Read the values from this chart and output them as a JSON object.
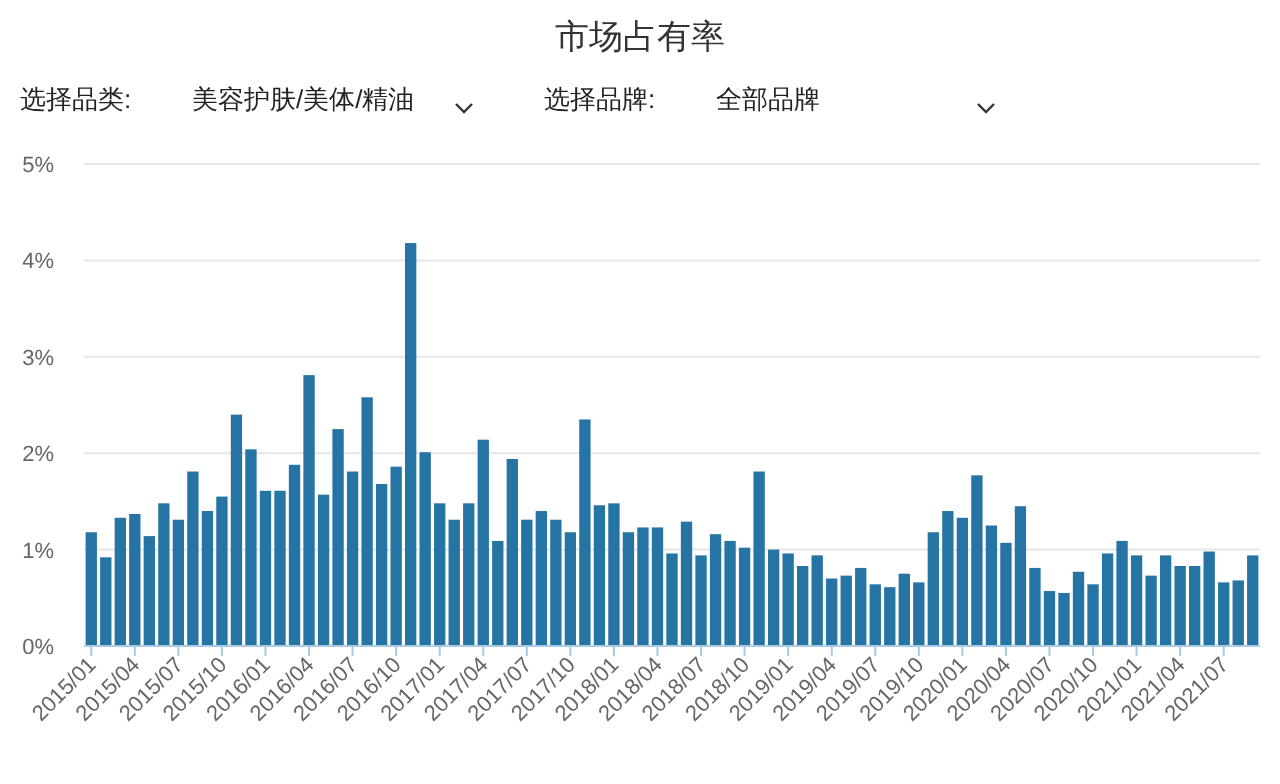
{
  "chart_data": {
    "type": "bar",
    "title": "市场占有率",
    "annotations": [
      "选择品类:",
      "美容护肤/美体/精油",
      "选择品牌:",
      "全部品牌"
    ],
    "categories": [
      "2015/01",
      null,
      null,
      "2015/04",
      null,
      null,
      "2015/07",
      null,
      null,
      "2015/10",
      null,
      null,
      "2016/01",
      null,
      null,
      "2016/04",
      null,
      null,
      "2016/07",
      null,
      null,
      "2016/10",
      null,
      null,
      "2017/01",
      null,
      null,
      "2017/04",
      null,
      null,
      "2017/07",
      null,
      null,
      "2017/10",
      null,
      null,
      "2018/01",
      null,
      null,
      "2018/04",
      null,
      null,
      "2018/07",
      null,
      null,
      "2018/10",
      null,
      null,
      "2019/01",
      null,
      null,
      "2019/04",
      null,
      null,
      "2019/07",
      null,
      null,
      "2019/10",
      null,
      null,
      "2020/01",
      null,
      null,
      "2020/04",
      null,
      null,
      "2020/07",
      null,
      null,
      "2020/10",
      null,
      null,
      "2021/01",
      null,
      null,
      "2021/04",
      null,
      null,
      "2021/07",
      null,
      null
    ],
    "values": [
      1.18,
      0.92,
      1.33,
      1.37,
      1.14,
      1.48,
      1.31,
      1.81,
      1.4,
      1.55,
      2.4,
      2.04,
      1.61,
      1.61,
      1.88,
      2.81,
      1.57,
      2.25,
      1.81,
      2.58,
      1.68,
      1.86,
      4.18,
      2.01,
      1.48,
      1.31,
      1.48,
      2.14,
      1.09,
      1.94,
      1.31,
      1.4,
      1.31,
      1.18,
      2.35,
      1.46,
      1.48,
      1.18,
      1.23,
      1.23,
      0.96,
      1.29,
      0.94,
      1.16,
      1.09,
      1.02,
      1.81,
      1.0,
      0.96,
      0.83,
      0.94,
      0.7,
      0.73,
      0.81,
      0.64,
      0.61,
      0.75,
      0.66,
      1.18,
      1.4,
      1.33,
      1.77,
      1.25,
      1.07,
      1.45,
      0.81,
      0.57,
      0.55,
      0.77,
      0.64,
      0.96,
      1.09,
      0.94,
      0.73,
      0.94,
      0.83,
      0.83,
      0.98,
      0.66,
      0.68,
      0.94
    ],
    "color": "#2574a4",
    "ylim": [
      0,
      5
    ],
    "yticks": [
      {
        "value": 0,
        "label": "0%"
      },
      {
        "value": 1,
        "label": "1%"
      },
      {
        "value": 2,
        "label": "2%"
      },
      {
        "value": 3,
        "label": "3%"
      },
      {
        "value": 4,
        "label": "4%"
      },
      {
        "value": 5,
        "label": "5%"
      }
    ],
    "grid": "y"
  }
}
